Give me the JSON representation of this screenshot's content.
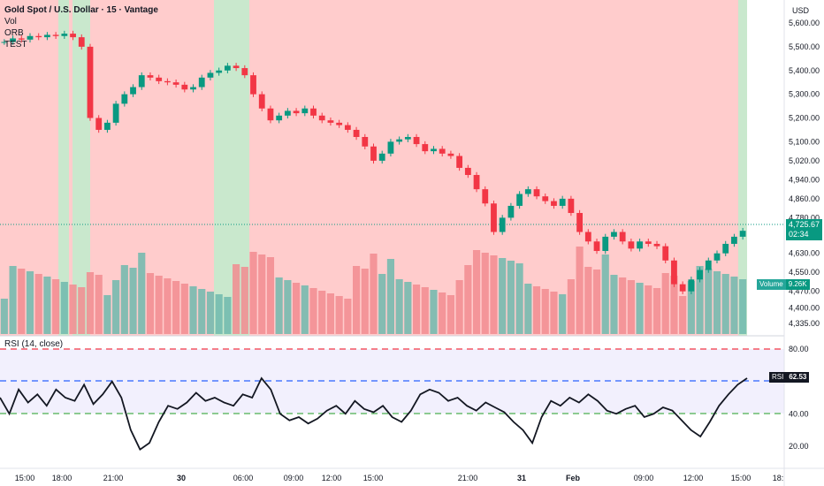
{
  "chart": {
    "title": "Gold Spot / U.S. Dollar · 15 · Vantage",
    "indicators": [
      "Vol",
      "ORB",
      "TEST"
    ],
    "currency": "USD",
    "last_price": "4,725.67",
    "countdown": "02:34",
    "volume_label": "Volume",
    "volume_value": "9.26K",
    "rsi_label": "RSI (14, close)",
    "rsi_badge_name": "RSI",
    "rsi_value": "62.53"
  },
  "colors": {
    "up": "#089981",
    "down": "#f23645",
    "bear_zone": "#ffcccc",
    "bull_zone": "#c9e8cd",
    "rsi_overbought": "#f23645",
    "rsi_mid": "#2962ff",
    "rsi_oversold": "#4caf50",
    "rsi_band": "#f2f0fd"
  },
  "chart_data": {
    "type": "candlestick",
    "price_axis_ticks": [
      "5,600.00",
      "5,500.00",
      "5,400.00",
      "5,300.00",
      "5,200.00",
      "5,100.00",
      "5,020.00",
      "4,940.00",
      "4,860.00",
      "4,780.00",
      "4,630.00",
      "4,550.00",
      "4,470.00",
      "4,400.00",
      "4,335.00"
    ],
    "rsi_axis_ticks": [
      "80.00",
      "40.00",
      "20.00"
    ],
    "time_axis_ticks": [
      "15:00",
      "18:00",
      "21:00",
      "30",
      "06:00",
      "09:00",
      "12:00",
      "15:00",
      "21:00",
      "31",
      "Feb",
      "09:00",
      "12:00",
      "15:00",
      "18:"
    ],
    "rsi_levels": {
      "overbought": 70,
      "mid": 50,
      "oversold": 30
    },
    "price_path": [
      5520,
      5535,
      5530,
      5545,
      5540,
      5550,
      5545,
      5555,
      5540,
      5500,
      5200,
      5150,
      5180,
      5260,
      5300,
      5330,
      5380,
      5370,
      5355,
      5350,
      5340,
      5320,
      5330,
      5370,
      5390,
      5400,
      5420,
      5410,
      5380,
      5300,
      5240,
      5190,
      5210,
      5230,
      5220,
      5240,
      5210,
      5190,
      5180,
      5170,
      5150,
      5120,
      5080,
      5020,
      5050,
      5100,
      5110,
      5120,
      5090,
      5060,
      5070,
      5050,
      5040,
      4990,
      4960,
      4900,
      4840,
      4720,
      4780,
      4830,
      4880,
      4900,
      4870,
      4850,
      4830,
      4860,
      4800,
      4720,
      4680,
      4640,
      4700,
      4720,
      4680,
      4650,
      4680,
      4670,
      4660,
      4600,
      4500,
      4470,
      4520,
      4560,
      4600,
      4630,
      4670,
      4700,
      4725
    ],
    "rsi_path": [
      50,
      40,
      55,
      47,
      52,
      45,
      55,
      50,
      48,
      58,
      46,
      52,
      60,
      50,
      30,
      18,
      22,
      35,
      45,
      43,
      47,
      53,
      48,
      50,
      47,
      45,
      52,
      50,
      62,
      55,
      40,
      36,
      38,
      34,
      37,
      42,
      45,
      40,
      48,
      43,
      41,
      45,
      38,
      35,
      42,
      52,
      55,
      53,
      48,
      50,
      45,
      42,
      47,
      44,
      41,
      35,
      30,
      22,
      38,
      48,
      45,
      50,
      47,
      52,
      48,
      42,
      40,
      43,
      45,
      38,
      40,
      44,
      42,
      36,
      30,
      26,
      35,
      45,
      52,
      58,
      62
    ]
  }
}
